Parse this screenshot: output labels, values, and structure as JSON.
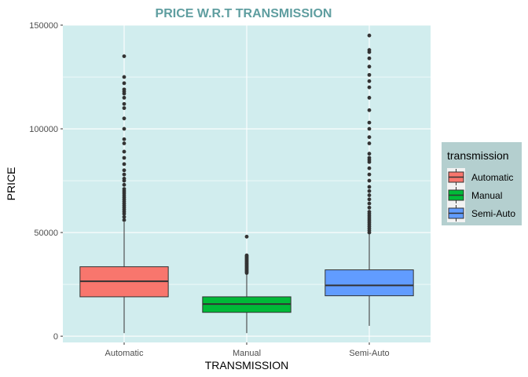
{
  "chart_data": {
    "type": "box",
    "title": "PRICE W.R.T TRANSMISSION",
    "xlabel": "TRANSMISSION",
    "ylabel": "PRICE",
    "ylim": [
      -3000,
      150000
    ],
    "yticks": [
      0,
      50000,
      100000,
      150000
    ],
    "ytick_labels": [
      "0",
      "50000",
      "100000",
      "150000"
    ],
    "grid": true,
    "legend": {
      "title": "transmission",
      "position": "right"
    },
    "categories": [
      "Automatic",
      "Manual",
      "Semi-Auto"
    ],
    "series": [
      {
        "name": "Automatic",
        "color": "#F8766D",
        "min": 1500,
        "q1": 19000,
        "median": 26500,
        "q3": 33500,
        "whisker_high": 55000,
        "outliers": [
          56000,
          57500,
          59000,
          60000,
          61000,
          62000,
          63000,
          64000,
          65000,
          66000,
          67000,
          68000,
          69000,
          70000,
          71000,
          73000,
          75000,
          76000,
          78000,
          80000,
          83000,
          86000,
          89000,
          93000,
          95000,
          100000,
          105000,
          110000,
          112000,
          115000,
          117000,
          118000,
          119000,
          122000,
          125000,
          135000
        ]
      },
      {
        "name": "Manual",
        "color": "#00BA38",
        "min": 1500,
        "q1": 11500,
        "median": 15500,
        "q3": 19000,
        "whisker_high": 30000,
        "outliers": [
          30500,
          31000,
          31500,
          32000,
          32500,
          33000,
          33500,
          34000,
          34500,
          35000,
          35500,
          36000,
          36500,
          37000,
          37500,
          38000,
          38500,
          39000,
          48000
        ]
      },
      {
        "name": "Semi-Auto",
        "color": "#619CFF",
        "min": 5000,
        "q1": 19500,
        "median": 24500,
        "q3": 32000,
        "whisker_high": 49500,
        "outliers": [
          50000,
          51000,
          52000,
          53000,
          54000,
          55000,
          56000,
          57000,
          58000,
          59000,
          60000,
          62000,
          64000,
          66000,
          68000,
          70000,
          72000,
          75000,
          78000,
          81000,
          84000,
          85000,
          86000,
          88000,
          93000,
          96000,
          100000,
          103000,
          109000,
          115000,
          120000,
          123000,
          126000,
          130000,
          134000,
          137000,
          138000,
          145000
        ]
      }
    ]
  },
  "colors": {
    "panel_bg": "#D1EDEE",
    "grid": "#FFFFFF",
    "title": "#5F9EA0",
    "legend_bg": "#B4CFCF"
  }
}
